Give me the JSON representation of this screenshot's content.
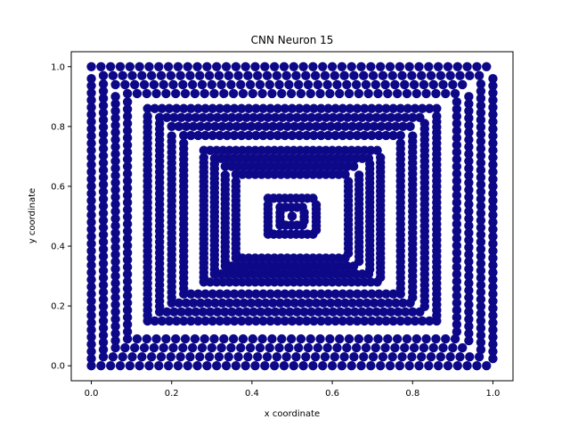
{
  "chart_data": {
    "type": "scatter",
    "title": "CNN Neuron 15",
    "xlabel": "x coordinate",
    "ylabel": "y coordinate",
    "xlim": [
      -0.05,
      1.05
    ],
    "ylim": [
      -0.05,
      1.05
    ],
    "x_ticks": [
      "0.0",
      "0.2",
      "0.4",
      "0.6",
      "0.8",
      "1.0"
    ],
    "y_ticks": [
      "0.0",
      "0.2",
      "0.4",
      "0.6",
      "0.8",
      "1.0"
    ],
    "grid": false,
    "legend": "none",
    "marker_color": "#0d0887",
    "series": [
      {
        "description_of_points": "concentric square rings of points",
        "rings": [
          {
            "x_min": 0.0,
            "x_max": 1.0,
            "y_min": 0.0,
            "y_max": 1.0,
            "width": 0.09,
            "spacing": 0.018
          },
          {
            "x_min": 0.14,
            "x_max": 0.86,
            "y_min": 0.15,
            "y_max": 0.86,
            "width": 0.09,
            "spacing": 0.012
          },
          {
            "x_min": 0.28,
            "x_max": 0.72,
            "y_min": 0.28,
            "y_max": 0.72,
            "width": 0.08,
            "spacing": 0.01
          },
          {
            "x_min": 0.44,
            "x_max": 0.56,
            "y_min": 0.44,
            "y_max": 0.56,
            "width": 0.06,
            "spacing": 0.008
          }
        ]
      }
    ]
  }
}
